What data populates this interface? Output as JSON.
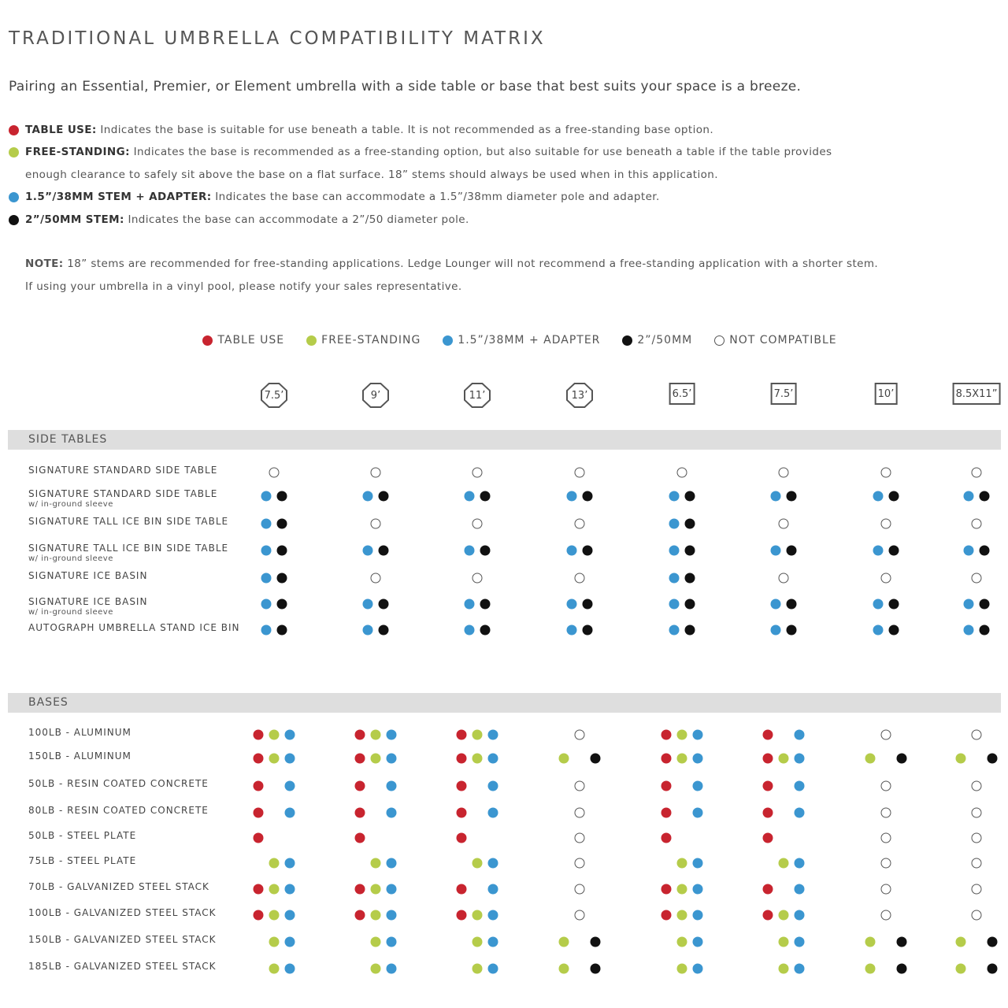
{
  "title": "TRADITIONAL UMBRELLA COMPATIBILITY MATRIX",
  "subtitle": "Pairing an Essential, Premier, or Element umbrella with a side table or base that best suits your space is a breeze.",
  "colors": {
    "table_use": "#c8242f",
    "free_standing": "#b5cc4a",
    "stem_38mm": "#3b96d0",
    "stem_50mm": "#111111"
  },
  "definitions": [
    {
      "key": "TABLE USE:",
      "text": " Indicates the base is suitable for use beneath a table. It is not recommended as a free-standing base option.",
      "dot": "r"
    },
    {
      "key": "FREE-STANDING:",
      "text": " Indicates the base is recommended as a free-standing option, but also suitable for use beneath a table if the table provides",
      "dot": "g"
    },
    {
      "key": "",
      "text": "enough clearance to safely sit above the base on a flat surface. 18” stems should always be used when in this application.",
      "dot": ""
    },
    {
      "key": "1.5”/38MM STEM + ADAPTER:",
      "text": " Indicates the base can accommodate a 1.5”/38mm diameter pole and adapter.",
      "dot": "b"
    },
    {
      "key": "2”/50MM STEM:",
      "text": " Indicates the base can accommodate a 2”/50 diameter pole.",
      "dot": "k"
    }
  ],
  "note": {
    "key": "NOTE:",
    "line1": " 18” stems are recommended for free-standing applications. Ledge Lounger will not recommend a free-standing application with a shorter stem.",
    "line2": "If using your umbrella in a vinyl pool, please notify your sales representative."
  },
  "legend": [
    {
      "label": "TABLE USE",
      "dot": "r"
    },
    {
      "label": "FREE-STANDING",
      "dot": "g"
    },
    {
      "label": "1.5”/38MM + ADAPTER",
      "dot": "b"
    },
    {
      "label": "2”/50MM",
      "dot": "k"
    },
    {
      "label": "NOT COMPATIBLE",
      "dot": "o"
    }
  ],
  "columns": [
    {
      "label": "7.5’",
      "shape": "octagon"
    },
    {
      "label": "9’",
      "shape": "octagon"
    },
    {
      "label": "11’",
      "shape": "octagon"
    },
    {
      "label": "13’",
      "shape": "octagon"
    },
    {
      "label": "6.5’",
      "shape": "square"
    },
    {
      "label": "7.5’",
      "shape": "square"
    },
    {
      "label": "10’",
      "shape": "square"
    },
    {
      "label": "8.5X11”",
      "shape": "square"
    }
  ],
  "sections": [
    {
      "title": "SIDE TABLES",
      "rows": [
        {
          "name": "SIGNATURE STANDARD SIDE TABLE",
          "note": "",
          "cells": [
            "o",
            "o",
            "o",
            "o",
            "o",
            "o",
            "o",
            "o"
          ]
        },
        {
          "name": "SIGNATURE STANDARD SIDE TABLE",
          "note": "w/ in-ground sleeve",
          "cells": [
            "bk",
            "bk",
            "bk",
            "bk",
            "bk",
            "bk",
            "bk",
            "bk"
          ]
        },
        {
          "name": "SIGNATURE TALL ICE BIN SIDE TABLE",
          "note": "",
          "cells": [
            "bk",
            "o",
            "o",
            "o",
            "bk",
            "o",
            "o",
            "o"
          ]
        },
        {
          "name": "SIGNATURE TALL ICE BIN SIDE TABLE",
          "note": "w/ in-ground sleeve",
          "cells": [
            "bk",
            "bk",
            "bk",
            "bk",
            "bk",
            "bk",
            "bk",
            "bk"
          ]
        },
        {
          "name": "SIGNATURE ICE BASIN",
          "note": "",
          "cells": [
            "bk",
            "o",
            "o",
            "o",
            "bk",
            "o",
            "o",
            "o"
          ]
        },
        {
          "name": "SIGNATURE ICE BASIN",
          "note": "w/ in-ground sleeve",
          "cells": [
            "bk",
            "bk",
            "bk",
            "bk",
            "bk",
            "bk",
            "bk",
            "bk"
          ]
        },
        {
          "name": "AUTOGRAPH UMBRELLA STAND ICE BIN",
          "note": "",
          "cells": [
            "bk",
            "bk",
            "bk",
            "bk",
            "bk",
            "bk",
            "bk",
            "bk"
          ]
        }
      ]
    },
    {
      "title": "BASES",
      "rows": [
        {
          "name": "100LB - ALUMINUM",
          "note": "",
          "cells": [
            "rgb",
            "rgb",
            "rgb",
            "o",
            "rgb",
            "r-b",
            "o",
            "o"
          ]
        },
        {
          "name": "150LB - ALUMINUM",
          "note": "",
          "cells": [
            "rgb",
            "rgb",
            "rgb",
            "g-k",
            "rgb",
            "rgb",
            "g-k",
            "g-k"
          ]
        },
        {
          "name": "50LB - RESIN COATED CONCRETE",
          "note": "",
          "cells": [
            "r-b",
            "r-b",
            "r-b",
            "o",
            "r-b",
            "r-b",
            "o",
            "o"
          ]
        },
        {
          "name": "80LB - RESIN COATED CONCRETE",
          "note": "",
          "cells": [
            "r-b",
            "r-b",
            "r-b",
            "o",
            "r-b",
            "r-b",
            "o",
            "o"
          ]
        },
        {
          "name": "50LB - STEEL PLATE",
          "note": "",
          "cells": [
            "r--",
            "r--",
            "r--",
            "o",
            "r--",
            "r--",
            "o",
            "o"
          ]
        },
        {
          "name": "75LB - STEEL PLATE",
          "note": "",
          "cells": [
            "-gb",
            "-gb",
            "-gb",
            "o",
            "-gb",
            "-gb",
            "o",
            "o"
          ]
        },
        {
          "name": "70LB - GALVANIZED STEEL STACK",
          "note": "",
          "cells": [
            "rgb",
            "rgb",
            "r-b",
            "o",
            "rgb",
            "r-b",
            "o",
            "o"
          ]
        },
        {
          "name": "100LB - GALVANIZED STEEL STACK",
          "note": "",
          "cells": [
            "rgb",
            "rgb",
            "rgb",
            "o",
            "rgb",
            "rgb",
            "o",
            "o"
          ]
        },
        {
          "name": "150LB - GALVANIZED STEEL STACK",
          "note": "",
          "cells": [
            "-gb",
            "-gb",
            "-gb",
            "g-k",
            "-gb",
            "-gb",
            "g-k",
            "g-k"
          ]
        },
        {
          "name": "185LB - GALVANIZED STEEL STACK",
          "note": "",
          "cells": [
            "-gb",
            "-gb",
            "-gb",
            "g-k",
            "-gb",
            "-gb",
            "g-k",
            "g-k"
          ]
        }
      ]
    }
  ]
}
